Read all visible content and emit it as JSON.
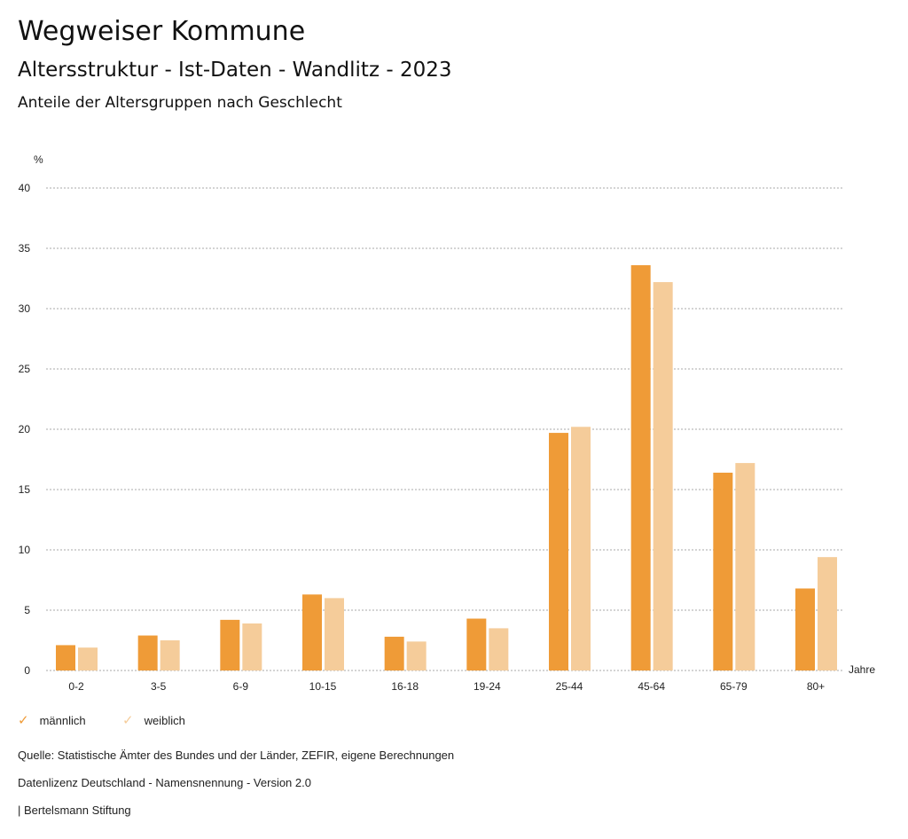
{
  "header": {
    "title": "Wegweiser Kommune",
    "subtitle": "Altersstruktur - Ist-Daten - Wandlitz - 2023",
    "chart_title": "Anteile der Altersgruppen nach Geschlecht"
  },
  "colors": {
    "maennlich": "#ef9b37",
    "weiblich": "#f5cc9a"
  },
  "chart_data": {
    "type": "bar",
    "title": "Anteile der Altersgruppen nach Geschlecht",
    "ylabel": "%",
    "xlabel": "Jahre",
    "ylim": [
      0,
      40
    ],
    "yticks": [
      0,
      5,
      10,
      15,
      20,
      25,
      30,
      35,
      40
    ],
    "categories": [
      "0-2",
      "3-5",
      "6-9",
      "10-15",
      "16-18",
      "19-24",
      "25-44",
      "45-64",
      "65-79",
      "80+"
    ],
    "series": [
      {
        "name": "männlich",
        "values": [
          2.1,
          2.9,
          4.2,
          6.3,
          2.8,
          4.3,
          19.7,
          33.6,
          16.4,
          6.8
        ]
      },
      {
        "name": "weiblich",
        "values": [
          1.9,
          2.5,
          3.9,
          6.0,
          2.4,
          3.5,
          20.2,
          32.2,
          17.2,
          9.4
        ]
      }
    ],
    "legend": "bottom-left",
    "grid": true
  },
  "legend": {
    "m": "männlich",
    "w": "weiblich",
    "icon": "check-icon"
  },
  "footer": {
    "source": "Quelle: Statistische Ämter des Bundes und der Länder, ZEFIR, eigene Berechnungen",
    "license": "Datenlizenz Deutschland - Namensnennung - Version 2.0",
    "brand": "| Bertelsmann Stiftung"
  }
}
